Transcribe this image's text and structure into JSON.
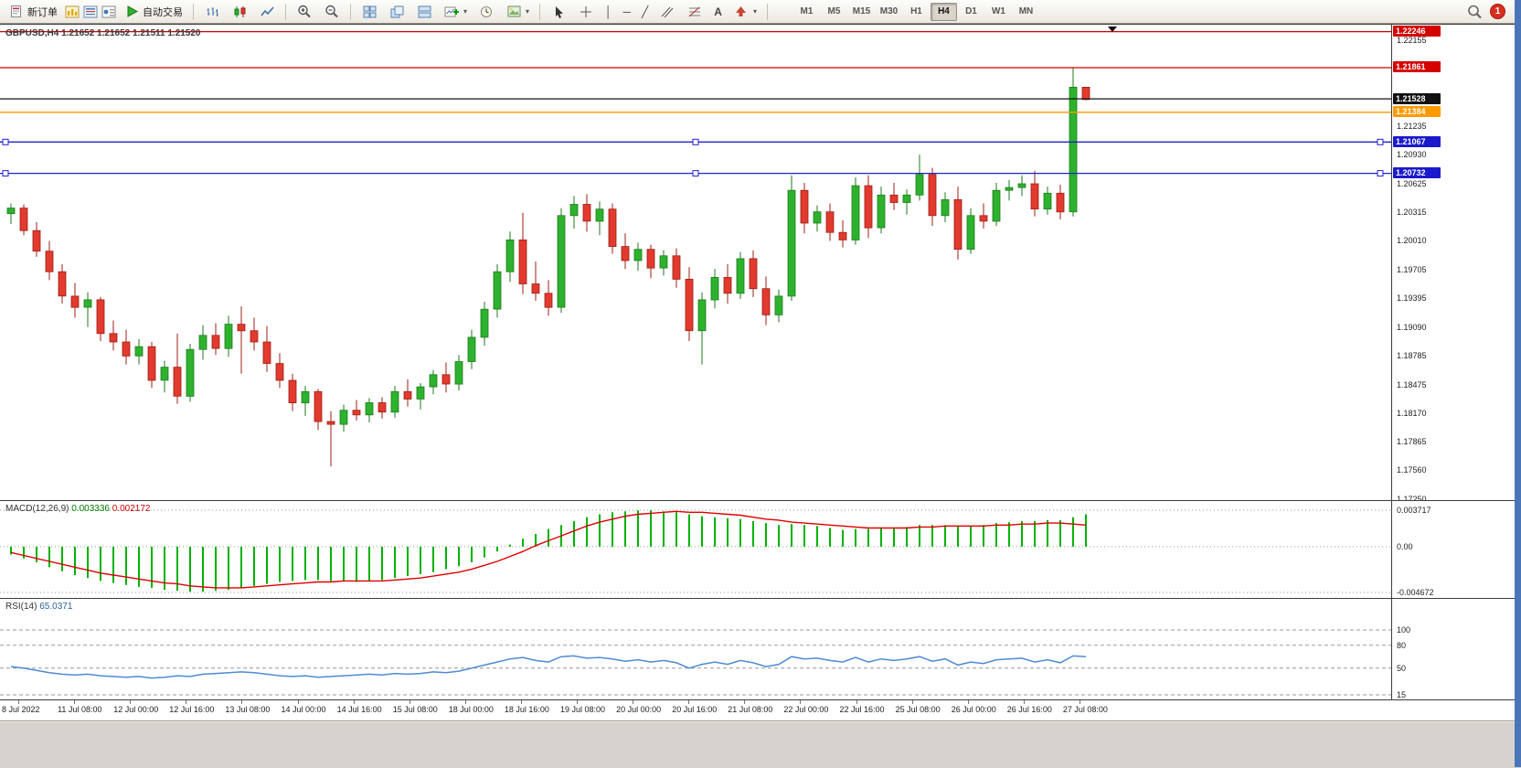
{
  "toolbar": {
    "new_order_label": "新订单",
    "autotrade_label": "自动交易",
    "timeframes": [
      "M1",
      "M5",
      "M15",
      "M30",
      "H1",
      "H4",
      "D1",
      "W1",
      "MN"
    ],
    "active_timeframe": "H4",
    "notification_count": "1",
    "icon_names": [
      "new-order-icon",
      "charts-icon",
      "market-watch-icon",
      "data-window-icon",
      "autotrade-play-icon",
      "bar-chart-icon",
      "candlestick-icon",
      "line-chart-icon",
      "zoom-in-icon",
      "zoom-out-icon",
      "tile-windows-icon",
      "cascade-windows-icon",
      "arrange-icon",
      "new-chart-icon",
      "clock-icon",
      "template-icon",
      "cursor-icon",
      "crosshair-icon",
      "vertical-line-icon",
      "horizontal-line-icon",
      "trendline-icon",
      "channel-icon",
      "fibonacci-icon",
      "text-icon",
      "arrows-icon",
      "search-icon",
      "notification-badge"
    ]
  },
  "chart": {
    "symbol": "GBPUSD",
    "period": "H4",
    "title": "GBPUSD,H4 1.21652 1.21652 1.21511 1.21520",
    "ohlc_display": {
      "open": "1.21652",
      "high": "1.21652",
      "low": "1.21511",
      "close": "1.21520"
    }
  },
  "chart_data": {
    "type": "candlestick",
    "price_top": 1.2232,
    "price_bottom": 1.1724,
    "colors": {
      "up": "#2db22d",
      "up_edge": "#1d7a1d",
      "down": "#e23a2e",
      "down_edge": "#9c1f15"
    },
    "candles": [
      [
        1.203,
        1.2041,
        1.2019,
        1.2036
      ],
      [
        1.2036,
        1.204,
        1.2007,
        1.2012
      ],
      [
        1.2012,
        1.2021,
        1.1984,
        1.199
      ],
      [
        1.199,
        1.2001,
        1.1959,
        1.1968
      ],
      [
        1.1968,
        1.1976,
        1.1934,
        1.1942
      ],
      [
        1.1942,
        1.1956,
        1.1919,
        1.193
      ],
      [
        1.193,
        1.1946,
        1.1909,
        1.1938
      ],
      [
        1.1938,
        1.1941,
        1.1894,
        1.1902
      ],
      [
        1.1902,
        1.1916,
        1.1884,
        1.1893
      ],
      [
        1.1893,
        1.1906,
        1.1869,
        1.1878
      ],
      [
        1.1878,
        1.1896,
        1.1869,
        1.1888
      ],
      [
        1.1888,
        1.1893,
        1.1844,
        1.1852
      ],
      [
        1.1852,
        1.1873,
        1.1839,
        1.1866
      ],
      [
        1.1866,
        1.1902,
        1.1827,
        1.1835
      ],
      [
        1.1835,
        1.1891,
        1.1829,
        1.1885
      ],
      [
        1.1885,
        1.1911,
        1.1874,
        1.19
      ],
      [
        1.19,
        1.1913,
        1.1879,
        1.1886
      ],
      [
        1.1886,
        1.1921,
        1.1877,
        1.1912
      ],
      [
        1.1912,
        1.1931,
        1.1859,
        1.1905
      ],
      [
        1.1905,
        1.1919,
        1.1884,
        1.1893
      ],
      [
        1.1893,
        1.191,
        1.1861,
        1.187
      ],
      [
        1.187,
        1.1881,
        1.1844,
        1.1852
      ],
      [
        1.1852,
        1.1859,
        1.1819,
        1.1828
      ],
      [
        1.1828,
        1.1846,
        1.1814,
        1.184
      ],
      [
        1.184,
        1.1843,
        1.1799,
        1.1808
      ],
      [
        1.1808,
        1.1819,
        1.176,
        1.1805
      ],
      [
        1.1805,
        1.1826,
        1.1797,
        1.182
      ],
      [
        1.182,
        1.1831,
        1.1809,
        1.1815
      ],
      [
        1.1815,
        1.1833,
        1.1807,
        1.1828
      ],
      [
        1.1828,
        1.1834,
        1.1811,
        1.1818
      ],
      [
        1.1818,
        1.1846,
        1.1812,
        1.184
      ],
      [
        1.184,
        1.1853,
        1.1824,
        1.1832
      ],
      [
        1.1832,
        1.1849,
        1.1821,
        1.1845
      ],
      [
        1.1845,
        1.1863,
        1.1837,
        1.1858
      ],
      [
        1.1858,
        1.1871,
        1.1839,
        1.1848
      ],
      [
        1.1848,
        1.1879,
        1.1841,
        1.1872
      ],
      [
        1.1872,
        1.1906,
        1.1864,
        1.1898
      ],
      [
        1.1898,
        1.1936,
        1.1889,
        1.1928
      ],
      [
        1.1928,
        1.1976,
        1.1919,
        1.1968
      ],
      [
        1.1968,
        1.2011,
        1.1957,
        1.2002
      ],
      [
        1.2002,
        1.2031,
        1.1944,
        1.1955
      ],
      [
        1.1955,
        1.1979,
        1.1937,
        1.1945
      ],
      [
        1.1945,
        1.1959,
        1.1921,
        1.193
      ],
      [
        1.193,
        1.2036,
        1.1924,
        1.2028
      ],
      [
        1.2028,
        1.2049,
        1.2014,
        1.204
      ],
      [
        1.204,
        1.2051,
        1.2011,
        1.2022
      ],
      [
        1.2022,
        1.2043,
        1.2007,
        1.2035
      ],
      [
        1.2035,
        1.2041,
        1.1987,
        1.1995
      ],
      [
        1.1995,
        1.2009,
        1.1971,
        1.198
      ],
      [
        1.198,
        1.1999,
        1.1969,
        1.1992
      ],
      [
        1.1992,
        1.1997,
        1.1961,
        1.1972
      ],
      [
        1.1972,
        1.1991,
        1.1964,
        1.1985
      ],
      [
        1.1985,
        1.1993,
        1.1951,
        1.196
      ],
      [
        1.196,
        1.1973,
        1.1894,
        1.1905
      ],
      [
        1.1905,
        1.1946,
        1.1869,
        1.1938
      ],
      [
        1.1938,
        1.1971,
        1.1929,
        1.1962
      ],
      [
        1.1962,
        1.1976,
        1.1934,
        1.1945
      ],
      [
        1.1945,
        1.1989,
        1.1939,
        1.1982
      ],
      [
        1.1982,
        1.1991,
        1.1941,
        1.195
      ],
      [
        1.195,
        1.1963,
        1.1911,
        1.1922
      ],
      [
        1.1922,
        1.1949,
        1.1914,
        1.1942
      ],
      [
        1.1942,
        1.2071,
        1.1937,
        1.2055
      ],
      [
        1.2055,
        1.2063,
        1.2009,
        1.202
      ],
      [
        1.202,
        1.2039,
        1.2011,
        1.2032
      ],
      [
        1.2032,
        1.2041,
        1.2001,
        1.201
      ],
      [
        1.201,
        1.2023,
        1.1994,
        1.2002
      ],
      [
        1.2002,
        1.2069,
        1.1997,
        1.206
      ],
      [
        1.206,
        1.2071,
        1.2004,
        1.2015
      ],
      [
        1.2015,
        1.2059,
        1.2009,
        1.205
      ],
      [
        1.205,
        1.2063,
        1.2034,
        1.2042
      ],
      [
        1.2042,
        1.2056,
        1.2029,
        1.205
      ],
      [
        1.205,
        1.2093,
        1.2044,
        1.2072
      ],
      [
        1.2072,
        1.2079,
        1.2017,
        1.2028
      ],
      [
        1.2028,
        1.2053,
        1.2021,
        1.2045
      ],
      [
        1.2045,
        1.2059,
        1.1981,
        1.1992
      ],
      [
        1.1992,
        1.2036,
        1.1987,
        1.2028
      ],
      [
        1.2028,
        1.2041,
        1.2014,
        1.2022
      ],
      [
        1.2022,
        1.2063,
        1.2017,
        1.2055
      ],
      [
        1.2055,
        1.2066,
        1.2044,
        1.2058
      ],
      [
        1.2058,
        1.2071,
        1.2049,
        1.2062
      ],
      [
        1.2062,
        1.2076,
        1.2027,
        1.2035
      ],
      [
        1.2035,
        1.2059,
        1.2029,
        1.2052
      ],
      [
        1.2052,
        1.2061,
        1.2024,
        1.2032
      ],
      [
        1.2032,
        1.21861,
        1.2027,
        1.21652
      ],
      [
        1.21652,
        1.21652,
        1.21511,
        1.2152
      ]
    ],
    "hlines": [
      {
        "price": 1.22246,
        "color": "#d40000",
        "badge": "1.22246",
        "badge_bg": "#d40000",
        "handles": false
      },
      {
        "price": 1.21861,
        "color": "#d40000",
        "badge": "1.21861",
        "badge_bg": "#d40000",
        "handles": false
      },
      {
        "price": 1.21528,
        "color": "#151515",
        "badge": "1.21528",
        "badge_bg": "#111111",
        "handles": false
      },
      {
        "price": 1.21384,
        "color": "#ff9900",
        "badge": "1.21384",
        "badge_bg": "#ff9900",
        "handles": false
      },
      {
        "price": 1.21067,
        "color": "#2222cc",
        "badge": "1.21067",
        "badge_bg": "#1a1acc",
        "handles": true
      },
      {
        "price": 1.20732,
        "color": "#2222cc",
        "badge": "1.20732",
        "badge_bg": "#1a1acc",
        "handles": true
      }
    ],
    "price_axis": {
      "labels": [
        "1.22155",
        "1.21235",
        "1.20930",
        "1.20625",
        "1.20315",
        "1.20010",
        "1.19705",
        "1.19395",
        "1.19090",
        "1.18785",
        "1.18475",
        "1.18170",
        "1.17865",
        "1.17560",
        "1.17250"
      ]
    },
    "time_axis": {
      "labels": [
        "8 Jul 2022",
        "11 Jul 08:00",
        "12 Jul 00:00",
        "12 Jul 16:00",
        "13 Jul 08:00",
        "14 Jul 00:00",
        "14 Jul 16:00",
        "15 Jul 08:00",
        "18 Jul 00:00",
        "18 Jul 16:00",
        "19 Jul 08:00",
        "20 Jul 00:00",
        "20 Jul 16:00",
        "21 Jul 08:00",
        "22 Jul 00:00",
        "22 Jul 16:00",
        "25 Jul 08:00",
        "26 Jul 00:00",
        "26 Jul 16:00",
        "27 Jul 08:00"
      ]
    },
    "macd": {
      "label": "MACD(12,26,9)",
      "value_main": "0.003336",
      "value_signal": "0.002172",
      "scale_max": 0.003717,
      "scale_min": -0.004672,
      "scale_labels": [
        "0.003717",
        "0.00",
        "-0.004672"
      ],
      "scale_values": [
        0.003717,
        0,
        -0.004672
      ],
      "hist_color": "#00b200",
      "signal_color": "#e00000",
      "histogram": [
        -0.0008,
        -0.0012,
        -0.0016,
        -0.0021,
        -0.0025,
        -0.0029,
        -0.0032,
        -0.0035,
        -0.0037,
        -0.0039,
        -0.0041,
        -0.0042,
        -0.0044,
        -0.0045,
        -0.0046,
        -0.0046,
        -0.0045,
        -0.0044,
        -0.0042,
        -0.004,
        -0.0038,
        -0.0036,
        -0.0035,
        -0.0034,
        -0.0034,
        -0.0035,
        -0.0035,
        -0.0036,
        -0.0035,
        -0.0034,
        -0.0032,
        -0.003,
        -0.0028,
        -0.0026,
        -0.0023,
        -0.002,
        -0.0016,
        -0.0011,
        -0.0005,
        0.0002,
        0.0008,
        0.0013,
        0.0018,
        0.0022,
        0.0026,
        0.003,
        0.0033,
        0.0035,
        0.0036,
        0.0037,
        0.0037,
        0.0036,
        0.0035,
        0.0033,
        0.0031,
        0.003,
        0.0029,
        0.0028,
        0.0026,
        0.0024,
        0.0022,
        0.0023,
        0.0022,
        0.0021,
        0.0019,
        0.0017,
        0.0018,
        0.0018,
        0.0019,
        0.0019,
        0.002,
        0.0022,
        0.0022,
        0.0022,
        0.0021,
        0.0021,
        0.0022,
        0.0024,
        0.0025,
        0.0026,
        0.0026,
        0.0027,
        0.0027,
        0.003,
        0.0033
      ],
      "signal": [
        -0.0006,
        -0.0009,
        -0.0012,
        -0.0015,
        -0.0018,
        -0.0021,
        -0.0024,
        -0.0027,
        -0.0029,
        -0.0031,
        -0.0033,
        -0.0035,
        -0.0037,
        -0.0038,
        -0.004,
        -0.0041,
        -0.0042,
        -0.0042,
        -0.0042,
        -0.0041,
        -0.004,
        -0.0039,
        -0.0038,
        -0.0037,
        -0.0036,
        -0.0036,
        -0.0035,
        -0.0035,
        -0.0035,
        -0.0035,
        -0.0034,
        -0.0033,
        -0.0032,
        -0.003,
        -0.0028,
        -0.0026,
        -0.0023,
        -0.0019,
        -0.0015,
        -0.001,
        -0.0005,
        0.0001,
        0.0006,
        0.0011,
        0.0016,
        0.0021,
        0.0025,
        0.0028,
        0.0031,
        0.0033,
        0.0034,
        0.0035,
        0.0036,
        0.0035,
        0.0035,
        0.0034,
        0.0033,
        0.0032,
        0.003,
        0.0028,
        0.0027,
        0.0025,
        0.0024,
        0.0023,
        0.0022,
        0.0021,
        0.002,
        0.0019,
        0.0019,
        0.0019,
        0.0019,
        0.002,
        0.002,
        0.0021,
        0.0021,
        0.0021,
        0.0021,
        0.0022,
        0.0022,
        0.0023,
        0.0023,
        0.0024,
        0.0024,
        0.0023,
        0.0022
      ]
    },
    "rsi": {
      "label": "RSI(14)",
      "value": "65.0371",
      "color": "#4e8bd4",
      "scale_labels": [
        "100",
        "80",
        "50",
        "15"
      ],
      "scale_values": [
        100,
        80,
        50,
        15
      ],
      "values": [
        52,
        50,
        47,
        44,
        42,
        41,
        42,
        40,
        39,
        38,
        39,
        37,
        38,
        40,
        39,
        42,
        43,
        44,
        45,
        44,
        42,
        40,
        39,
        40,
        38,
        39,
        40,
        41,
        42,
        41,
        43,
        42,
        43,
        45,
        44,
        46,
        50,
        54,
        58,
        62,
        64,
        60,
        58,
        65,
        66,
        63,
        64,
        62,
        59,
        61,
        58,
        60,
        57,
        50,
        55,
        58,
        55,
        60,
        57,
        52,
        55,
        65,
        62,
        63,
        60,
        58,
        64,
        58,
        62,
        60,
        62,
        65,
        59,
        62,
        54,
        58,
        56,
        61,
        62,
        63,
        58,
        61,
        57,
        66,
        65
      ]
    }
  }
}
